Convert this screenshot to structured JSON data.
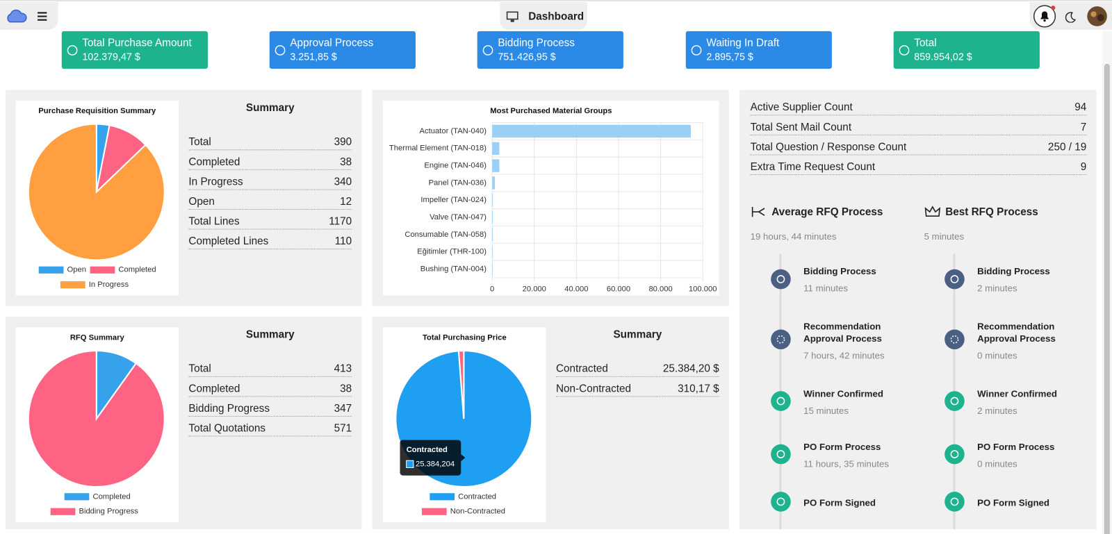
{
  "header": {
    "title": "Dashboard"
  },
  "kpis": [
    {
      "label": "Total Purchase Amount",
      "value": "102.379,47 $"
    },
    {
      "label": "Approval Process",
      "value": "3.251,85 $"
    },
    {
      "label": "Bidding Process",
      "value": "751.426,95 $"
    },
    {
      "label": "Waiting In Draft",
      "value": "2.895,75 $"
    },
    {
      "label": "Total",
      "value": "859.954,02 $"
    }
  ],
  "chart_data": [
    {
      "type": "pie",
      "title": "Purchase Requisition Summary",
      "categories": [
        "Open",
        "Completed",
        "In Progress"
      ],
      "values": [
        12,
        38,
        340
      ],
      "colors": [
        "#36a2eb",
        "#ff6384",
        "#ff9f40"
      ]
    },
    {
      "type": "bar",
      "orientation": "horizontal",
      "title": "Most Purchased Material Groups",
      "categories": [
        "Actuator  (TAN-040)",
        "Thermal Element  (TAN-018)",
        "Engine  (TAN-046)",
        "Panel  (TAN-036)",
        "Impeller  (TAN-024)",
        "Valve  (TAN-047)",
        "Consumable  (TAN-058)",
        "Eğitimler  (THR-100)",
        "Bushing  (TAN-004)"
      ],
      "values": [
        94300,
        3400,
        3400,
        1300,
        300,
        300,
        300,
        200,
        200
      ],
      "color": "#9ad0f5",
      "xlim": [
        0,
        100000
      ],
      "xticks": [
        0,
        {
          "value": 20000,
          "label": "20.000"
        },
        {
          "value": 40000,
          "label": "40.000"
        },
        {
          "value": 60000,
          "label": "60.000"
        },
        {
          "value": 80000,
          "label": "80.000"
        },
        {
          "value": 100000,
          "label": "100.000"
        }
      ],
      "grid": true
    },
    {
      "type": "pie",
      "title": "RFQ Summary",
      "categories": [
        "Completed",
        "Bidding Progress"
      ],
      "values": [
        38,
        347
      ],
      "colors": [
        "#36a2eb",
        "#ff6384"
      ]
    },
    {
      "type": "pie",
      "title": "Total Purchasing Price",
      "categories": [
        "Contracted",
        "Non-Contracted"
      ],
      "values": [
        25384.204,
        310.17
      ],
      "colors": [
        "#1e9ff2",
        "#ff6384"
      ],
      "tooltip": {
        "title": "Contracted",
        "label": "25.384,204"
      }
    }
  ],
  "summaries": [
    {
      "title": "Summary",
      "rows": [
        [
          "Total",
          390
        ],
        [
          "Completed",
          38
        ],
        [
          "In Progress",
          340
        ],
        [
          "Open",
          12
        ],
        [
          "Total Lines",
          1170
        ],
        [
          "Completed Lines",
          110
        ]
      ]
    },
    {
      "title": "Summary",
      "rows": [
        [
          "Total",
          413
        ],
        [
          "Completed",
          38
        ],
        [
          "Bidding Progress",
          347
        ],
        [
          "Total Quotations",
          571
        ]
      ]
    },
    {
      "title": "Summary",
      "rows": [
        [
          "Contracted",
          "25.384,20 $"
        ],
        [
          "Non-Contracted",
          "310,17 $"
        ]
      ]
    }
  ],
  "stats": [
    [
      "Active Supplier Count",
      94
    ],
    [
      "Total Sent Mail Count",
      7
    ],
    [
      "Total Question / Response Count",
      "250 / 19"
    ],
    [
      "Extra Time Request Count",
      9
    ]
  ],
  "rfq_processes": [
    {
      "title": "Average RFQ Process",
      "duration": "19 hours, 44 minutes",
      "steps": [
        {
          "name": "Bidding Process",
          "duration": "11 minutes"
        },
        {
          "name": "Recommendation Approval Process",
          "duration": "7 hours, 42 minutes"
        },
        {
          "name": "Winner Confirmed",
          "duration": "15 minutes"
        },
        {
          "name": "PO Form Process",
          "duration": "11 hours, 35 minutes"
        },
        {
          "name": "PO Form Signed"
        }
      ]
    },
    {
      "title": "Best RFQ Process",
      "duration": "5 minutes",
      "steps": [
        {
          "name": "Bidding Process",
          "duration": "2 minutes"
        },
        {
          "name": "Recommendation Approval Process",
          "duration": "0 minutes"
        },
        {
          "name": "Winner Confirmed",
          "duration": "2 minutes"
        },
        {
          "name": "PO Form Process",
          "duration": "0 minutes"
        },
        {
          "name": "PO Form Signed"
        }
      ]
    }
  ]
}
